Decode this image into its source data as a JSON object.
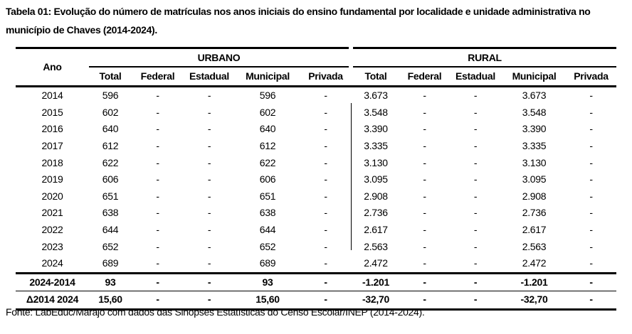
{
  "title": "Tabela 01: Evolução do número de matrículas nos anos iniciais do ensino fundamental por localidade e unidade administrativa no município de Chaves (2014-2024).",
  "table": {
    "year_header": "Ano",
    "groups": [
      "URBANO",
      "RURAL"
    ],
    "subheaders": [
      "Total",
      "Federal",
      "Estadual",
      "Municipal",
      "Privada",
      "Total",
      "Federal",
      "Estadual",
      "Municipal",
      "Privada"
    ],
    "rows": [
      [
        "2014",
        "596",
        "-",
        "-",
        "596",
        "-",
        "3.673",
        "-",
        "-",
        "3.673",
        "-"
      ],
      [
        "2015",
        "602",
        "-",
        "-",
        "602",
        "-",
        "3.548",
        "-",
        "-",
        "3.548",
        "-"
      ],
      [
        "2016",
        "640",
        "-",
        "-",
        "640",
        "-",
        "3.390",
        "-",
        "-",
        "3.390",
        "-"
      ],
      [
        "2017",
        "612",
        "-",
        "-",
        "612",
        "-",
        "3.335",
        "-",
        "-",
        "3.335",
        "-"
      ],
      [
        "2018",
        "622",
        "-",
        "-",
        "622",
        "-",
        "3.130",
        "-",
        "-",
        "3.130",
        "-"
      ],
      [
        "2019",
        "606",
        "-",
        "-",
        "606",
        "-",
        "3.095",
        "-",
        "-",
        "3.095",
        "-"
      ],
      [
        "2020",
        "651",
        "-",
        "-",
        "651",
        "-",
        "2.908",
        "-",
        "-",
        "2.908",
        "-"
      ],
      [
        "2021",
        "638",
        "-",
        "-",
        "638",
        "-",
        "2.736",
        "-",
        "-",
        "2.736",
        "-"
      ],
      [
        "2022",
        "644",
        "-",
        "-",
        "644",
        "-",
        "2.617",
        "-",
        "-",
        "2.617",
        "-"
      ],
      [
        "2023",
        "652",
        "-",
        "-",
        "652",
        "-",
        "2.563",
        "-",
        "-",
        "2.563",
        "-"
      ],
      [
        "2024",
        "689",
        "-",
        "-",
        "689",
        "-",
        "2.472",
        "-",
        "-",
        "2.472",
        "-"
      ]
    ],
    "diff_row": [
      "2024-2014",
      "93",
      "-",
      "-",
      "93",
      "-",
      "-1.201",
      "-",
      "-",
      "-1.201",
      "-"
    ],
    "pct_row": [
      "Δ2014 2024",
      "15,60",
      "-",
      "-",
      "15,60",
      "-",
      "-32,70",
      "-",
      "-",
      "-32,70",
      "-"
    ]
  },
  "source": "Fonte: LabEduc/Marajó com dados das Sinopses Estatísticas do Censo Escolar/INEP (2014-2024)."
}
